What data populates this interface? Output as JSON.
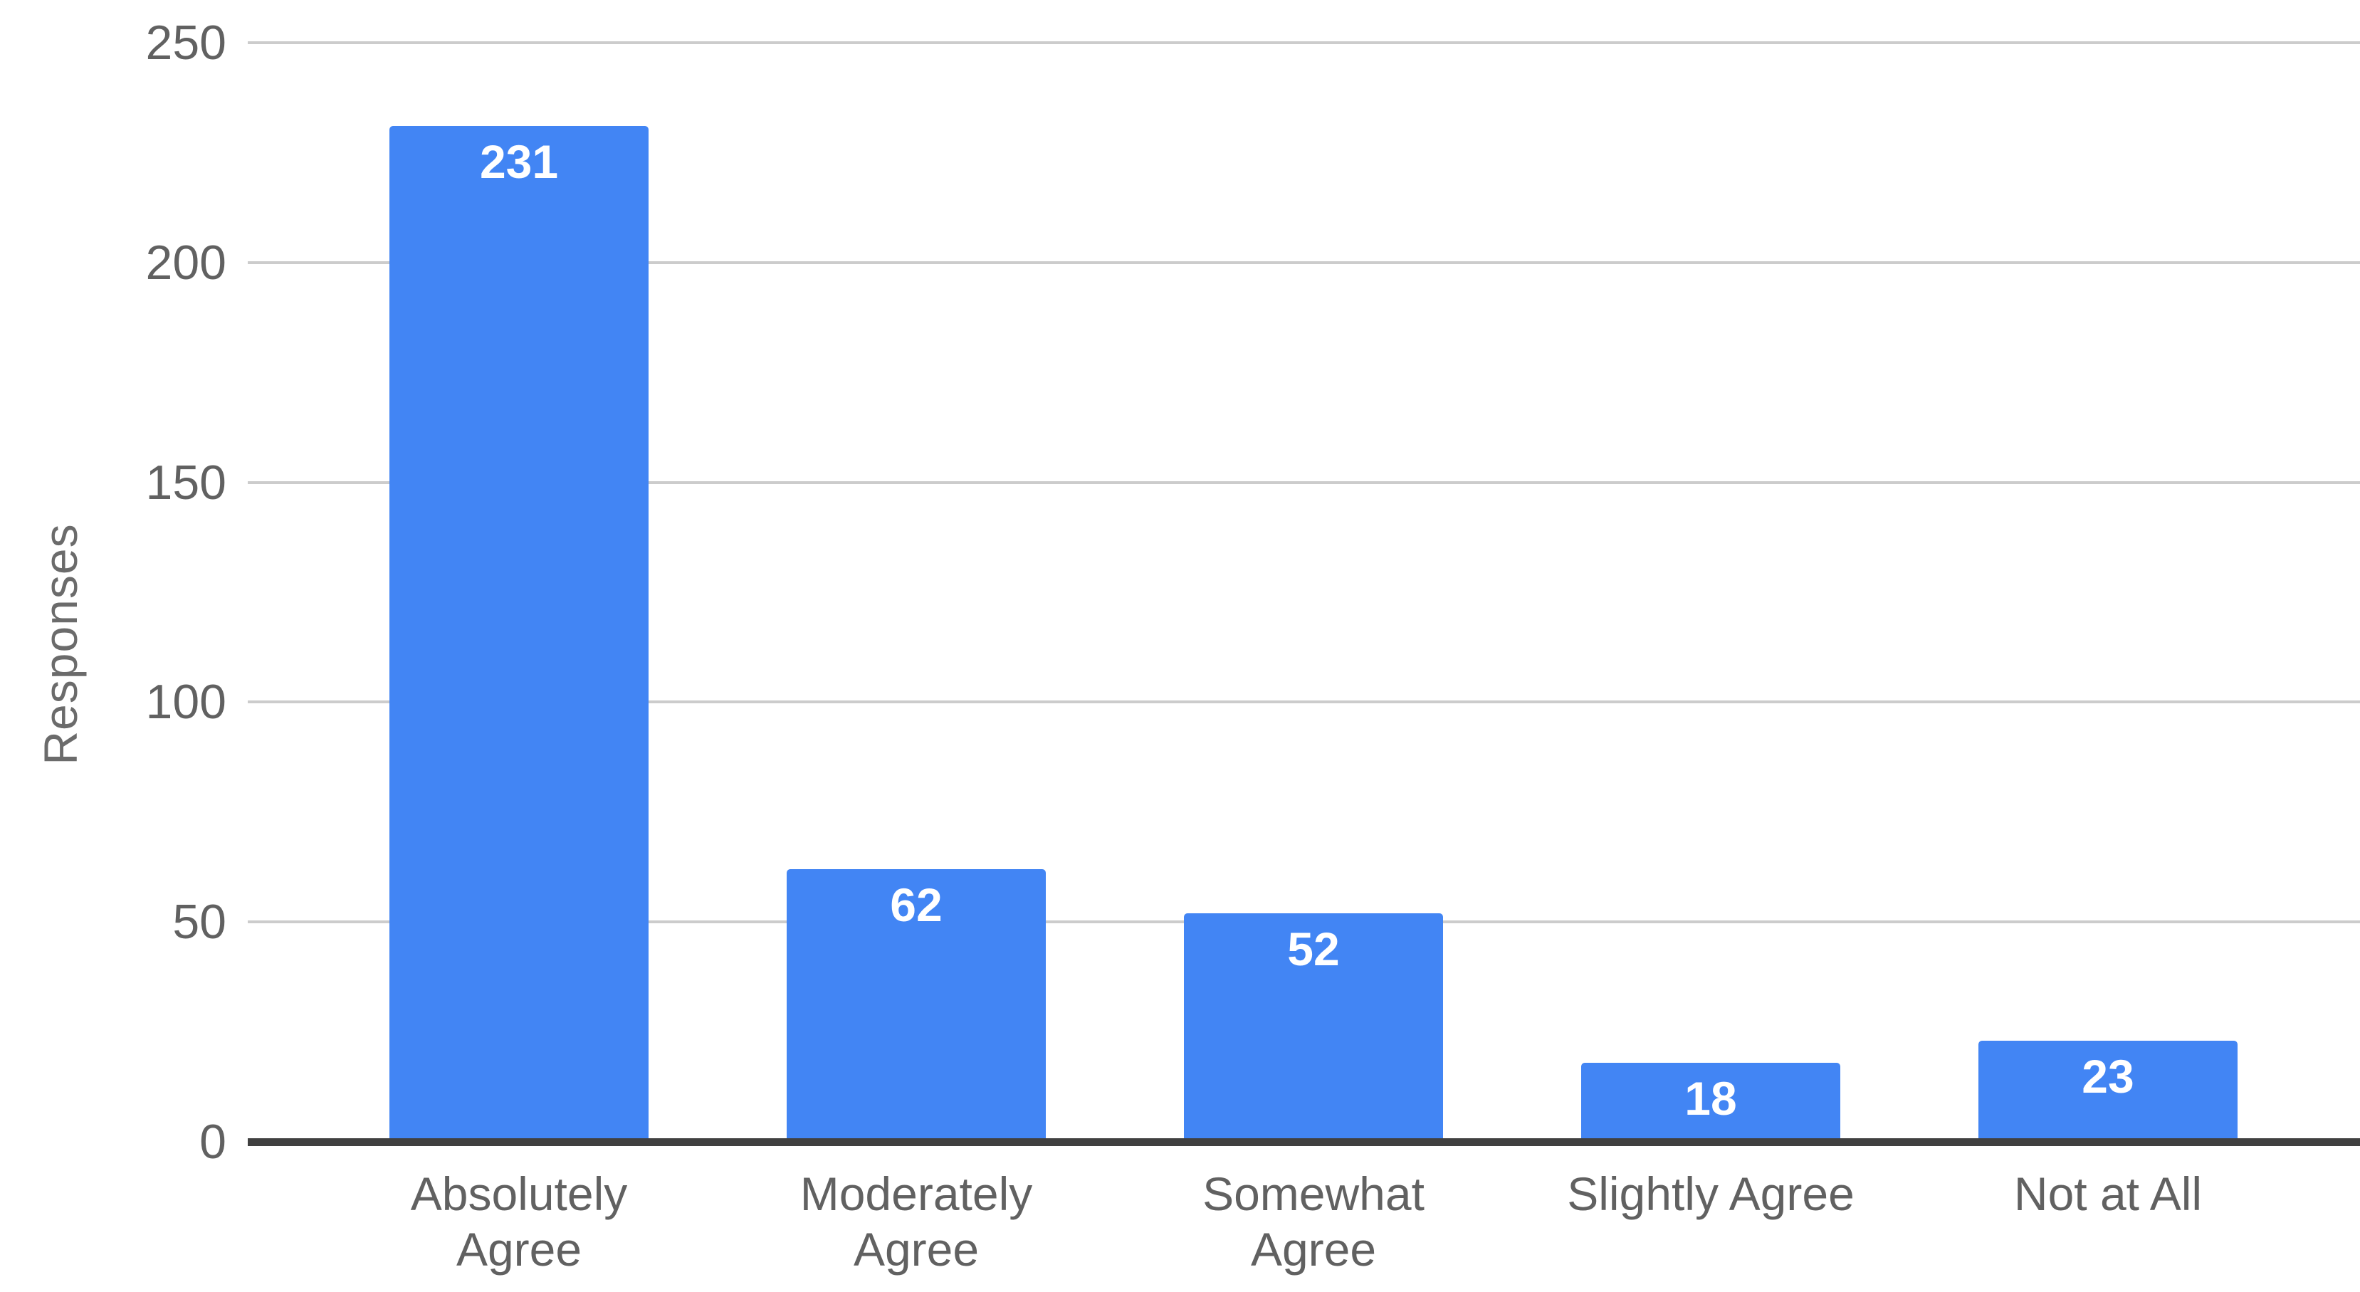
{
  "chart_data": {
    "type": "bar",
    "title": "",
    "xlabel": "",
    "ylabel": "Responses",
    "categories": [
      "Absolutely Agree",
      "Moderately Agree",
      "Somewhat Agree",
      "Slightly Agree",
      "Not at All"
    ],
    "category_label_lines": [
      [
        "Absolutely",
        "Agree"
      ],
      [
        "Moderately",
        "Agree"
      ],
      [
        "Somewhat",
        "Agree"
      ],
      [
        "Slightly Agree"
      ],
      [
        "Not at All"
      ]
    ],
    "values": [
      231,
      62,
      52,
      18,
      23
    ],
    "bar_value_labels": [
      "231",
      "62",
      "52",
      "18",
      "23"
    ],
    "yticks": [
      0,
      50,
      100,
      150,
      200,
      250
    ],
    "ytick_labels": [
      "0",
      "50",
      "100",
      "150",
      "200",
      "250"
    ],
    "ylim": [
      0,
      250
    ],
    "grid": true,
    "legend_position": "none",
    "colors": {
      "bar": "#4285f4",
      "bar_value_label": "#ffffff",
      "gridline": "#cccccc",
      "baseline": "#404040",
      "tick_text": "#616161",
      "axis_title_text": "#6b6b6b",
      "background": "#ffffff"
    }
  }
}
